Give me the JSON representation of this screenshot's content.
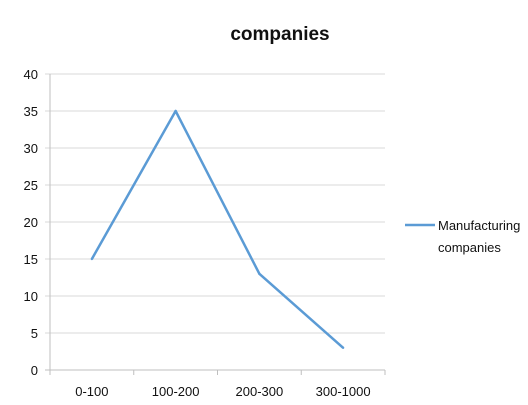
{
  "chart_data": {
    "type": "line",
    "title": "companies",
    "categories": [
      "0-100",
      "100-200",
      "200-300",
      "300-1000"
    ],
    "series": [
      {
        "name": "Manufacturing companies",
        "values": [
          15,
          35,
          13,
          3
        ],
        "color": "#5b9bd5"
      }
    ],
    "ylim": [
      0,
      40
    ],
    "yticks": [
      0,
      5,
      10,
      15,
      20,
      25,
      30,
      35,
      40
    ],
    "grid": true,
    "legend": "right",
    "legend_lines": [
      "Manufacturing",
      "companies"
    ]
  }
}
